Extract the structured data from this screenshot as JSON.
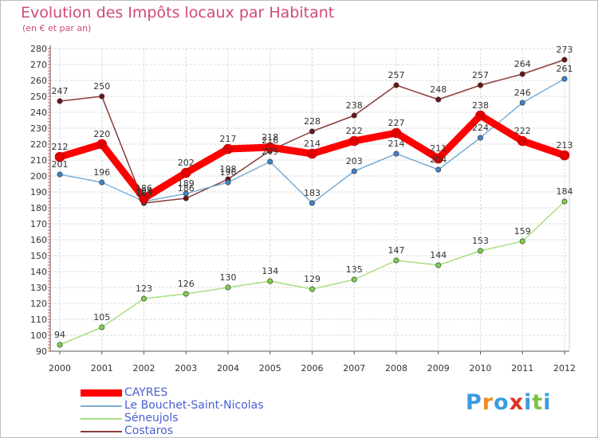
{
  "chart_data": {
    "type": "line",
    "title": "Evolution des Impôts locaux par Habitant",
    "subtitle": "(en € et par an)",
    "xlabel": "",
    "ylabel": "",
    "x": [
      "2000",
      "2001",
      "2002",
      "2003",
      "2004",
      "2005",
      "2006",
      "2007",
      "2008",
      "2009",
      "2010",
      "2011",
      "2012"
    ],
    "ylim": [
      90,
      280
    ],
    "yticks": [
      90,
      100,
      110,
      120,
      130,
      140,
      150,
      160,
      170,
      180,
      190,
      200,
      210,
      220,
      230,
      240,
      250,
      260,
      270,
      280
    ],
    "grid": true,
    "legend_position": "bottom-left",
    "series": [
      {
        "name": "CAYRES",
        "color": "#ff0000",
        "marker_color": "#e00000",
        "values": [
          212,
          220,
          186,
          202,
          217,
          218,
          214,
          222,
          227,
          211,
          238,
          222,
          213
        ]
      },
      {
        "name": "Le Bouchet-Saint-Nicolas",
        "color": "#7aaed6",
        "marker_color": "#3f84c6",
        "values": [
          201,
          196,
          184,
          189,
          196,
          209,
          183,
          203,
          214,
          204,
          224,
          246,
          261
        ]
      },
      {
        "name": "Séneujols",
        "color": "#a8df82",
        "marker_color": "#7ecf48",
        "values": [
          94,
          105,
          123,
          126,
          130,
          134,
          129,
          135,
          147,
          144,
          153,
          159,
          184
        ]
      },
      {
        "name": "Costaros",
        "color": "#8b3a3a",
        "marker_color": "#6e1414",
        "values": [
          247,
          250,
          183,
          186,
          198,
          216,
          228,
          238,
          257,
          248,
          257,
          264,
          273
        ]
      }
    ],
    "labels": [
      {
        "series": 2,
        "values": [
          "94",
          "105",
          "123",
          "126",
          "130",
          "134",
          "129",
          "135",
          "147",
          "144",
          "153",
          "159",
          "184"
        ]
      },
      {
        "series": 3,
        "values": [
          "247",
          "250",
          "183",
          "186",
          "198",
          "216",
          "228",
          "238",
          "257",
          "248",
          "257",
          "264",
          "273"
        ]
      },
      {
        "series": 1,
        "values": [
          "201",
          "196",
          "184",
          "189",
          "196",
          "209",
          "183",
          "203",
          "214",
          "204",
          "224",
          "246",
          "261"
        ]
      },
      {
        "series": 0,
        "values": [
          "212",
          "220",
          "186",
          "202",
          "217",
          "218",
          "214",
          "222",
          "227",
          "211",
          "238",
          "222",
          "213"
        ]
      }
    ]
  },
  "logo": {
    "letters": [
      "P",
      "r",
      "o",
      "x",
      "i",
      "t",
      "i"
    ],
    "colors": [
      "#3a9be0",
      "#f08a1a",
      "#3a9be0",
      "#e03020",
      "#3a9be0",
      "#7cc242",
      "#3a9be0"
    ]
  }
}
